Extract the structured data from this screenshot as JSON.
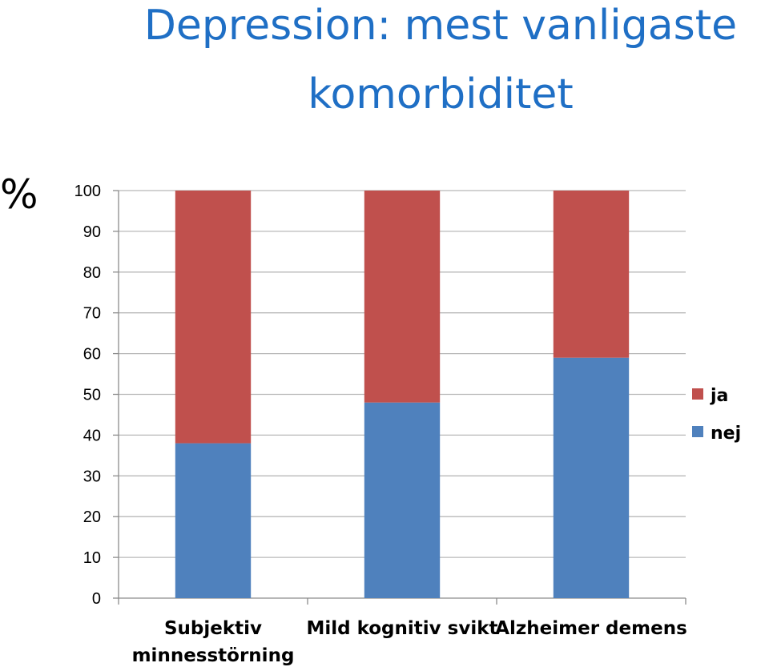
{
  "title_line1": "Depression: mest vanligaste",
  "title_line2": "komorbiditet",
  "unit_label": "%",
  "chart_data": {
    "type": "bar",
    "stacked": true,
    "categories": [
      [
        "Subjektiv",
        "minnesstörning"
      ],
      [
        "Mild kognitiv svikt"
      ],
      [
        "Alzheimer demens"
      ]
    ],
    "series": [
      {
        "name": "nej",
        "color": "#4f81bd",
        "values": [
          38,
          48,
          59
        ]
      },
      {
        "name": "ja",
        "color": "#c0504d",
        "values": [
          62,
          52,
          41
        ]
      }
    ],
    "yticks": [
      0,
      10,
      20,
      30,
      40,
      50,
      60,
      70,
      80,
      90,
      100
    ],
    "ylim": [
      0,
      100
    ],
    "grid": true,
    "legend_position": "right",
    "legend_order": [
      "ja",
      "nej"
    ]
  }
}
